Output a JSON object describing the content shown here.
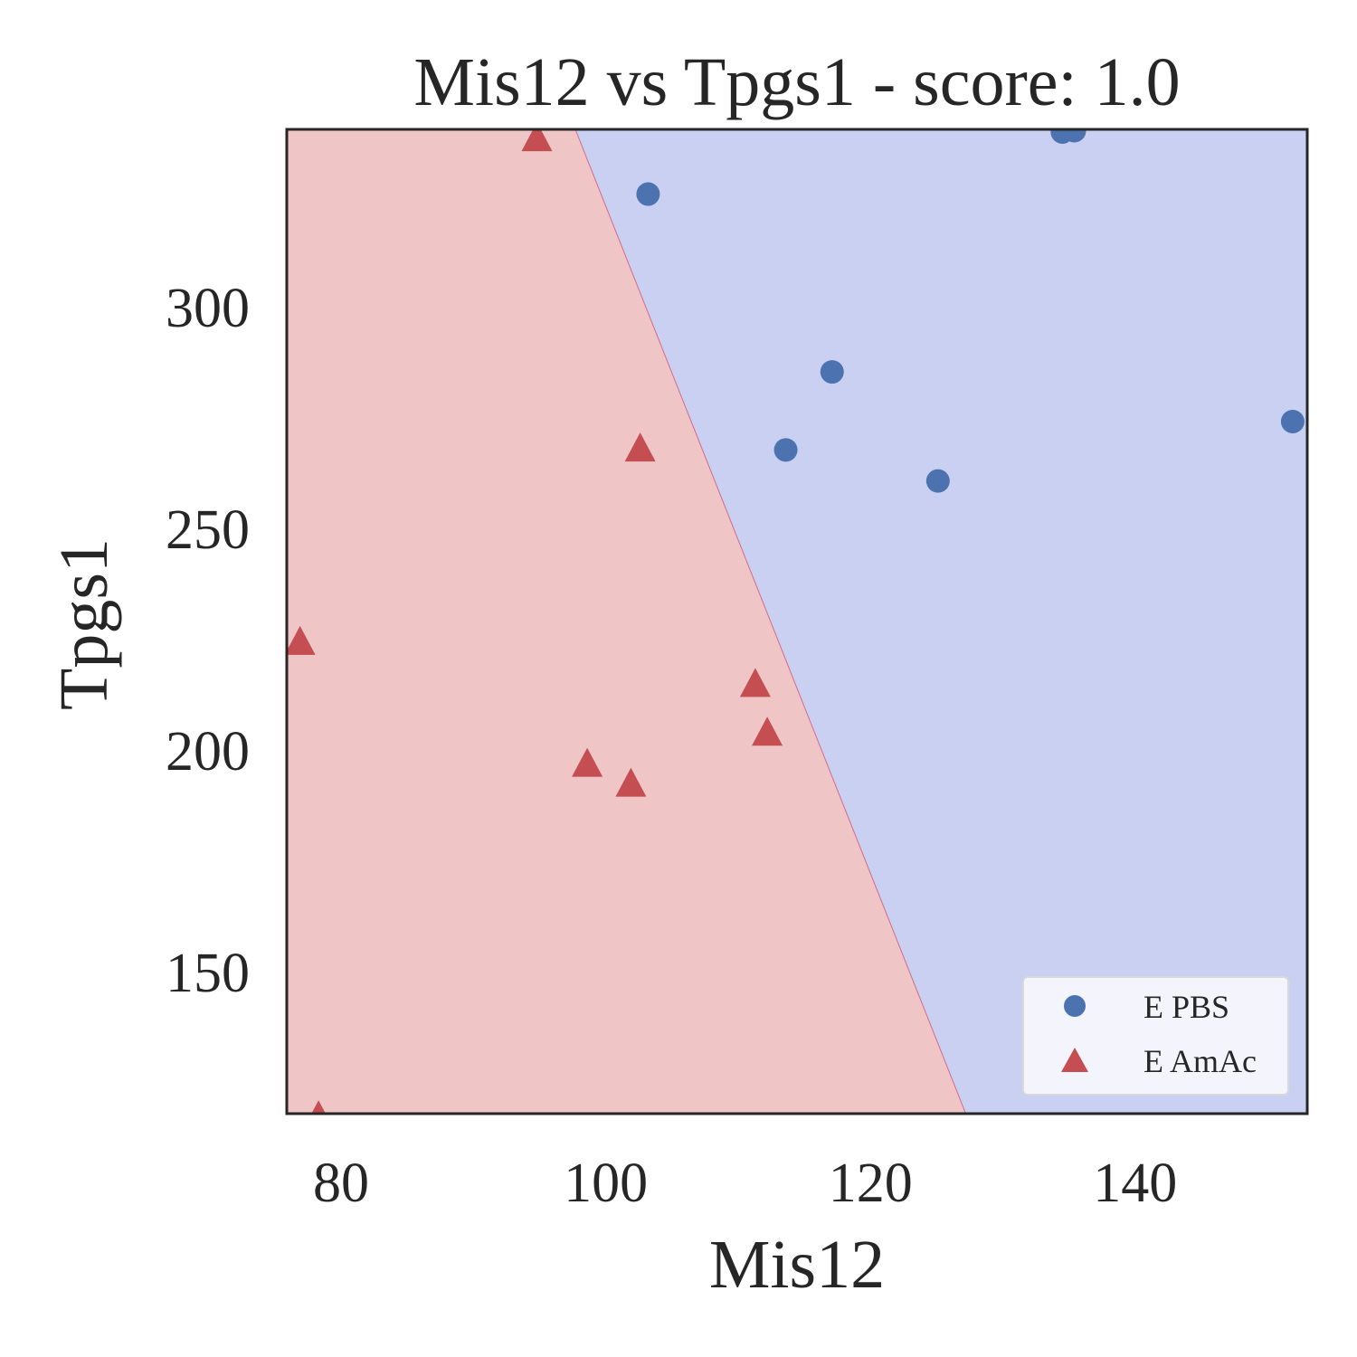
{
  "chart_data": {
    "type": "scatter",
    "title": "Mis12 vs Tpgs1 - score: 1.0",
    "xlabel": "Mis12",
    "ylabel": "Tpgs1",
    "xlim": [
      75.9,
      153.0
    ],
    "ylim": [
      118.0,
      340.0
    ],
    "xticks": [
      80,
      100,
      120,
      140
    ],
    "yticks": [
      150,
      200,
      250,
      300
    ],
    "xtick_labels": [
      "80",
      "100",
      "120",
      "140"
    ],
    "ytick_labels": [
      "150",
      "200",
      "250",
      "300"
    ],
    "grid": false,
    "legend_position": "lower-right",
    "decision_boundary": {
      "points": [
        [
          97.7,
          340.0
        ],
        [
          127.2,
          118.0
        ]
      ],
      "left_region_class": "E AmAc",
      "right_region_class": "E PBS",
      "left_color": "#efc5c5",
      "right_color": "#c9d0f2",
      "boundary_color": "#d46a8a"
    },
    "series": [
      {
        "name": "E PBS",
        "marker": "circle",
        "color": "#4c72b0",
        "points": [
          [
            103.2,
            325.4
          ],
          [
            117.1,
            285.3
          ],
          [
            113.6,
            267.7
          ],
          [
            125.1,
            260.7
          ],
          [
            151.9,
            274.1
          ],
          [
            134.5,
            339.4
          ],
          [
            135.4,
            339.7
          ]
        ]
      },
      {
        "name": "E AmAc",
        "marker": "triangle",
        "color": "#c44e52",
        "points": [
          [
            94.8,
            337.7
          ],
          [
            102.6,
            267.7
          ],
          [
            76.9,
            224.1
          ],
          [
            111.3,
            214.6
          ],
          [
            112.2,
            203.6
          ],
          [
            98.6,
            196.6
          ],
          [
            101.9,
            192.1
          ],
          [
            78.3,
            117.1
          ]
        ]
      }
    ]
  }
}
